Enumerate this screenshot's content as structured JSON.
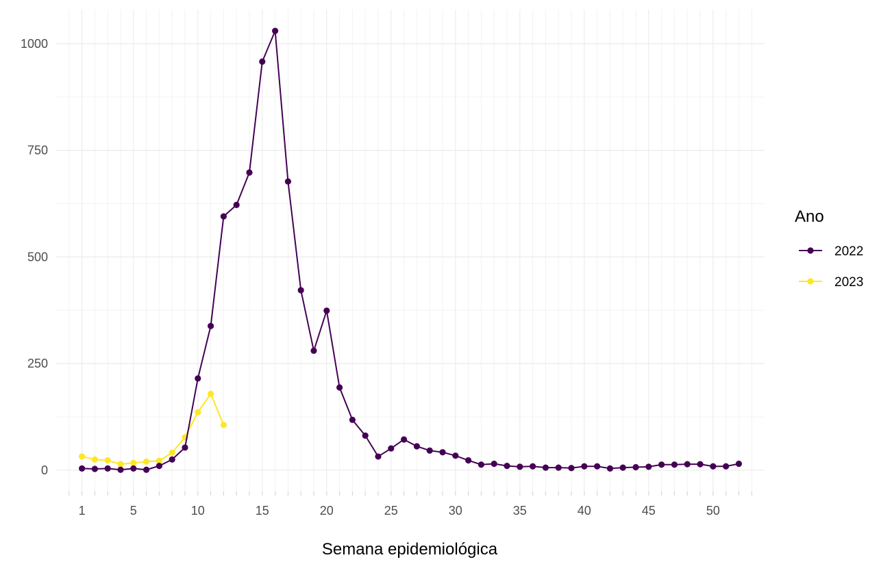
{
  "chart_data": {
    "type": "line",
    "title": "",
    "xlabel": "Semana epidemiológica",
    "ylabel": "",
    "xlim": [
      -1,
      54
    ],
    "ylim": [
      -50,
      1080
    ],
    "x_ticks": [
      1,
      5,
      10,
      15,
      20,
      25,
      30,
      35,
      40,
      45,
      50
    ],
    "y_ticks": [
      0,
      250,
      500,
      750,
      1000
    ],
    "grid": true,
    "legend": {
      "title": "Ano",
      "placement": "right"
    },
    "series": [
      {
        "name": "2022",
        "color": "#440154",
        "x": [
          1,
          2,
          3,
          4,
          5,
          6,
          7,
          8,
          9,
          10,
          11,
          12,
          13,
          14,
          15,
          16,
          17,
          18,
          19,
          20,
          21,
          22,
          23,
          24,
          25,
          26,
          27,
          28,
          29,
          30,
          31,
          32,
          33,
          34,
          35,
          36,
          37,
          38,
          39,
          40,
          41,
          42,
          43,
          44,
          45,
          46,
          47,
          48,
          49,
          50,
          51,
          52
        ],
        "values": [
          4,
          3,
          4,
          1,
          4,
          1,
          10,
          25,
          53,
          215,
          338,
          595,
          622,
          698,
          958,
          1030,
          677,
          422,
          280,
          374,
          194,
          118,
          81,
          32,
          51,
          72,
          56,
          46,
          42,
          34,
          23,
          13,
          15,
          10,
          8,
          9,
          6,
          6,
          5,
          9,
          9,
          4,
          6,
          7,
          8,
          13,
          13,
          14,
          14,
          9,
          9,
          15
        ]
      },
      {
        "name": "2023",
        "color": "#fde725",
        "x": [
          1,
          2,
          3,
          4,
          5,
          6,
          7,
          8,
          9,
          10,
          11,
          12
        ],
        "values": [
          32,
          25,
          23,
          14,
          17,
          20,
          22,
          41,
          77,
          136,
          179,
          106
        ]
      }
    ]
  }
}
